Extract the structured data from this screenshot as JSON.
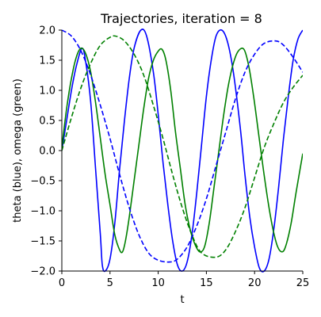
{
  "chart_data": {
    "type": "line",
    "title": "Trajectories, iteration = 8",
    "xlabel": "t",
    "ylabel": "theta (blue), omega (green)",
    "xlim": [
      0,
      25
    ],
    "ylim": [
      -2.0,
      2.0
    ],
    "grid": false,
    "legend": "none",
    "x_ticks": [
      0,
      5,
      10,
      15,
      20,
      25
    ],
    "x_tick_labels": [
      "0",
      "5",
      "10",
      "15",
      "20",
      "25"
    ],
    "y_ticks": [
      -2.0,
      -1.5,
      -1.0,
      -0.5,
      0.0,
      0.5,
      1.0,
      1.5,
      2.0
    ],
    "y_tick_labels": [
      "−2.0",
      "−1.5",
      "−1.0",
      "−0.5",
      "0.0",
      "0.5",
      "1.0",
      "1.5",
      "2.0"
    ],
    "series": [
      {
        "id": "theta-solid",
        "color": "#0000ff",
        "linestyle": "solid",
        "points": [
          [
            0,
            0
          ],
          [
            0.5,
            0.5
          ],
          [
            1,
            1.0
          ],
          [
            1.5,
            1.4
          ],
          [
            2.1,
            1.7
          ],
          [
            2.5,
            1.45
          ],
          [
            3,
            0.8
          ],
          [
            3.5,
            -0.3
          ],
          [
            4,
            -1.4
          ],
          [
            4.2,
            -1.9
          ],
          [
            4.5,
            -2.0
          ],
          [
            5,
            -1.8
          ],
          [
            5.5,
            -1.2
          ],
          [
            6,
            -0.3
          ],
          [
            6.5,
            0.5
          ],
          [
            7,
            1.2
          ],
          [
            7.5,
            1.7
          ],
          [
            8.2,
            2.0
          ],
          [
            8.8,
            1.9
          ],
          [
            9.5,
            1.3
          ],
          [
            10,
            0.6
          ],
          [
            10.5,
            -0.2
          ],
          [
            11,
            -0.9
          ],
          [
            11.5,
            -1.5
          ],
          [
            12,
            -1.9
          ],
          [
            12.5,
            -2.0
          ],
          [
            13,
            -1.85
          ],
          [
            13.5,
            -1.4
          ],
          [
            14,
            -0.7
          ],
          [
            14.5,
            0.1
          ],
          [
            15,
            0.9
          ],
          [
            15.5,
            1.5
          ],
          [
            16,
            1.9
          ],
          [
            16.6,
            2.0
          ],
          [
            17.2,
            1.8
          ],
          [
            17.8,
            1.3
          ],
          [
            18.5,
            0.4
          ],
          [
            19,
            -0.4
          ],
          [
            19.5,
            -1.1
          ],
          [
            20,
            -1.6
          ],
          [
            20.5,
            -1.95
          ],
          [
            21,
            -2.0
          ],
          [
            21.5,
            -1.8
          ],
          [
            22,
            -1.3
          ],
          [
            22.5,
            -0.6
          ],
          [
            23,
            0.2
          ],
          [
            23.5,
            0.9
          ],
          [
            24,
            1.5
          ],
          [
            24.5,
            1.85
          ],
          [
            25,
            2.0
          ]
        ]
      },
      {
        "id": "omega-solid",
        "color": "#008000",
        "linestyle": "solid",
        "points": [
          [
            0,
            0.05
          ],
          [
            0.5,
            0.7
          ],
          [
            1,
            1.2
          ],
          [
            1.5,
            1.55
          ],
          [
            2,
            1.7
          ],
          [
            2.5,
            1.6
          ],
          [
            3,
            1.3
          ],
          [
            3.5,
            0.8
          ],
          [
            4,
            0.2
          ],
          [
            4.5,
            -0.4
          ],
          [
            5,
            -0.9
          ],
          [
            5.5,
            -1.4
          ],
          [
            6,
            -1.65
          ],
          [
            6.3,
            -1.68
          ],
          [
            6.6,
            -1.5
          ],
          [
            7,
            -1.1
          ],
          [
            7.5,
            -0.5
          ],
          [
            8,
            0.1
          ],
          [
            8.5,
            0.7
          ],
          [
            9,
            1.2
          ],
          [
            9.5,
            1.5
          ],
          [
            10,
            1.65
          ],
          [
            10.4,
            1.68
          ],
          [
            10.8,
            1.5
          ],
          [
            11.3,
            1.0
          ],
          [
            11.8,
            0.3
          ],
          [
            12.3,
            -0.3
          ],
          [
            12.8,
            -0.9
          ],
          [
            13.3,
            -1.3
          ],
          [
            13.8,
            -1.55
          ],
          [
            14.3,
            -1.68
          ],
          [
            14.8,
            -1.6
          ],
          [
            15.3,
            -1.2
          ],
          [
            15.8,
            -0.6
          ],
          [
            16.3,
            0.0
          ],
          [
            16.8,
            0.6
          ],
          [
            17.3,
            1.1
          ],
          [
            17.8,
            1.45
          ],
          [
            18.3,
            1.65
          ],
          [
            18.9,
            1.68
          ],
          [
            19.4,
            1.4
          ],
          [
            19.9,
            0.9
          ],
          [
            20.4,
            0.3
          ],
          [
            20.9,
            -0.3
          ],
          [
            21.4,
            -0.85
          ],
          [
            21.9,
            -1.3
          ],
          [
            22.4,
            -1.6
          ],
          [
            22.9,
            -1.68
          ],
          [
            23.3,
            -1.55
          ],
          [
            23.8,
            -1.2
          ],
          [
            24.3,
            -0.7
          ],
          [
            25,
            -0.05
          ]
        ]
      },
      {
        "id": "theta-dashed",
        "color": "#0000ff",
        "linestyle": "dashed",
        "points": [
          [
            0,
            2.0
          ],
          [
            1,
            1.9
          ],
          [
            2,
            1.65
          ],
          [
            3,
            1.25
          ],
          [
            4,
            0.75
          ],
          [
            5,
            0.2
          ],
          [
            6,
            -0.4
          ],
          [
            7,
            -0.95
          ],
          [
            8,
            -1.4
          ],
          [
            9,
            -1.7
          ],
          [
            10,
            -1.82
          ],
          [
            11.2,
            -1.85
          ],
          [
            12,
            -1.8
          ],
          [
            13,
            -1.6
          ],
          [
            14,
            -1.25
          ],
          [
            15,
            -0.8
          ],
          [
            16,
            -0.25
          ],
          [
            17,
            0.3
          ],
          [
            18,
            0.85
          ],
          [
            19,
            1.3
          ],
          [
            20,
            1.6
          ],
          [
            21,
            1.78
          ],
          [
            22.2,
            1.82
          ],
          [
            23,
            1.75
          ],
          [
            24,
            1.55
          ],
          [
            25,
            1.3
          ]
        ]
      },
      {
        "id": "omega-dashed",
        "color": "#008000",
        "linestyle": "dashed",
        "points": [
          [
            0,
            0
          ],
          [
            1,
            0.55
          ],
          [
            2,
            1.05
          ],
          [
            3,
            1.45
          ],
          [
            4,
            1.75
          ],
          [
            5,
            1.88
          ],
          [
            5.6,
            1.9
          ],
          [
            6.5,
            1.82
          ],
          [
            7.5,
            1.6
          ],
          [
            8.5,
            1.25
          ],
          [
            9.5,
            0.75
          ],
          [
            10.5,
            0.2
          ],
          [
            11.5,
            -0.4
          ],
          [
            12.5,
            -0.95
          ],
          [
            13.5,
            -1.4
          ],
          [
            14.5,
            -1.7
          ],
          [
            16,
            -1.77
          ],
          [
            17,
            -1.65
          ],
          [
            18,
            -1.35
          ],
          [
            19,
            -0.95
          ],
          [
            20,
            -0.45
          ],
          [
            21,
            0.05
          ],
          [
            22,
            0.45
          ],
          [
            23,
            0.8
          ],
          [
            24,
            1.05
          ],
          [
            25,
            1.25
          ]
        ]
      }
    ]
  }
}
